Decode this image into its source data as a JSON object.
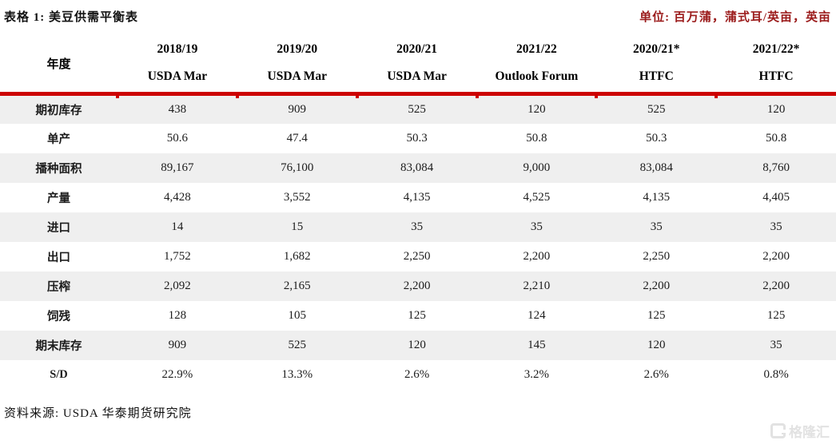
{
  "header": {
    "title": "表格 1: 美豆供需平衡表",
    "unit": "单位: 百万蒲，蒲式耳/英亩，英亩"
  },
  "table": {
    "year_label": "年度",
    "columns": [
      {
        "year": "2018/19",
        "source": "USDA Mar"
      },
      {
        "year": "2019/20",
        "source": "USDA Mar"
      },
      {
        "year": "2020/21",
        "source": "USDA Mar"
      },
      {
        "year": "2021/22",
        "source": "Outlook Forum"
      },
      {
        "year": "2020/21*",
        "source": "HTFC"
      },
      {
        "year": "2021/22*",
        "source": "HTFC"
      }
    ],
    "rows": [
      {
        "label": "期初库存",
        "values": [
          "438",
          "909",
          "525",
          "120",
          "525",
          "120"
        ]
      },
      {
        "label": "单产",
        "values": [
          "50.6",
          "47.4",
          "50.3",
          "50.8",
          "50.3",
          "50.8"
        ]
      },
      {
        "label": "播种面积",
        "values": [
          "89,167",
          "76,100",
          "83,084",
          "9,000",
          "83,084",
          "8,760"
        ]
      },
      {
        "label": "产量",
        "values": [
          "4,428",
          "3,552",
          "4,135",
          "4,525",
          "4,135",
          "4,405"
        ]
      },
      {
        "label": "进口",
        "values": [
          "14",
          "15",
          "35",
          "35",
          "35",
          "35"
        ]
      },
      {
        "label": "出口",
        "values": [
          "1,752",
          "1,682",
          "2,250",
          "2,200",
          "2,250",
          "2,200"
        ]
      },
      {
        "label": "压榨",
        "values": [
          "2,092",
          "2,165",
          "2,200",
          "2,210",
          "2,200",
          "2,200"
        ]
      },
      {
        "label": "饲残",
        "values": [
          "128",
          "105",
          "125",
          "124",
          "125",
          "125"
        ]
      },
      {
        "label": "期末库存",
        "values": [
          "909",
          "525",
          "120",
          "145",
          "120",
          "35"
        ]
      },
      {
        "label": "S/D",
        "values": [
          "22.9%",
          "13.3%",
          "2.6%",
          "3.2%",
          "2.6%",
          "0.8%"
        ]
      }
    ]
  },
  "footer": {
    "source": "资料来源: USDA 华泰期货研究院",
    "watermark": "格隆汇"
  },
  "colors": {
    "accent_red": "#cc0000",
    "unit_text": "#9b1b1b",
    "row_alt_bg": "#efefef",
    "watermark": "#e2e2e2"
  },
  "chart_data": {
    "type": "table",
    "title": "表格 1: 美豆供需平衡表",
    "unit": "百万蒲, 蒲式耳/英亩, 英亩",
    "column_headers": [
      "2018/19 USDA Mar",
      "2019/20 USDA Mar",
      "2020/21 USDA Mar",
      "2021/22 Outlook Forum",
      "2020/21* HTFC",
      "2021/22* HTFC"
    ],
    "row_headers": [
      "期初库存",
      "单产",
      "播种面积",
      "产量",
      "进口",
      "出口",
      "压榨",
      "饲残",
      "期末库存",
      "S/D"
    ],
    "values": [
      [
        438,
        909,
        525,
        120,
        525,
        120
      ],
      [
        50.6,
        47.4,
        50.3,
        50.8,
        50.3,
        50.8
      ],
      [
        89167,
        76100,
        83084,
        9000,
        83084,
        8760
      ],
      [
        4428,
        3552,
        4135,
        4525,
        4135,
        4405
      ],
      [
        14,
        15,
        35,
        35,
        35,
        35
      ],
      [
        1752,
        1682,
        2250,
        2200,
        2250,
        2200
      ],
      [
        2092,
        2165,
        2200,
        2210,
        2200,
        2200
      ],
      [
        128,
        105,
        125,
        124,
        125,
        125
      ],
      [
        909,
        525,
        120,
        145,
        120,
        35
      ],
      [
        "22.9%",
        "13.3%",
        "2.6%",
        "3.2%",
        "2.6%",
        "0.8%"
      ]
    ]
  }
}
